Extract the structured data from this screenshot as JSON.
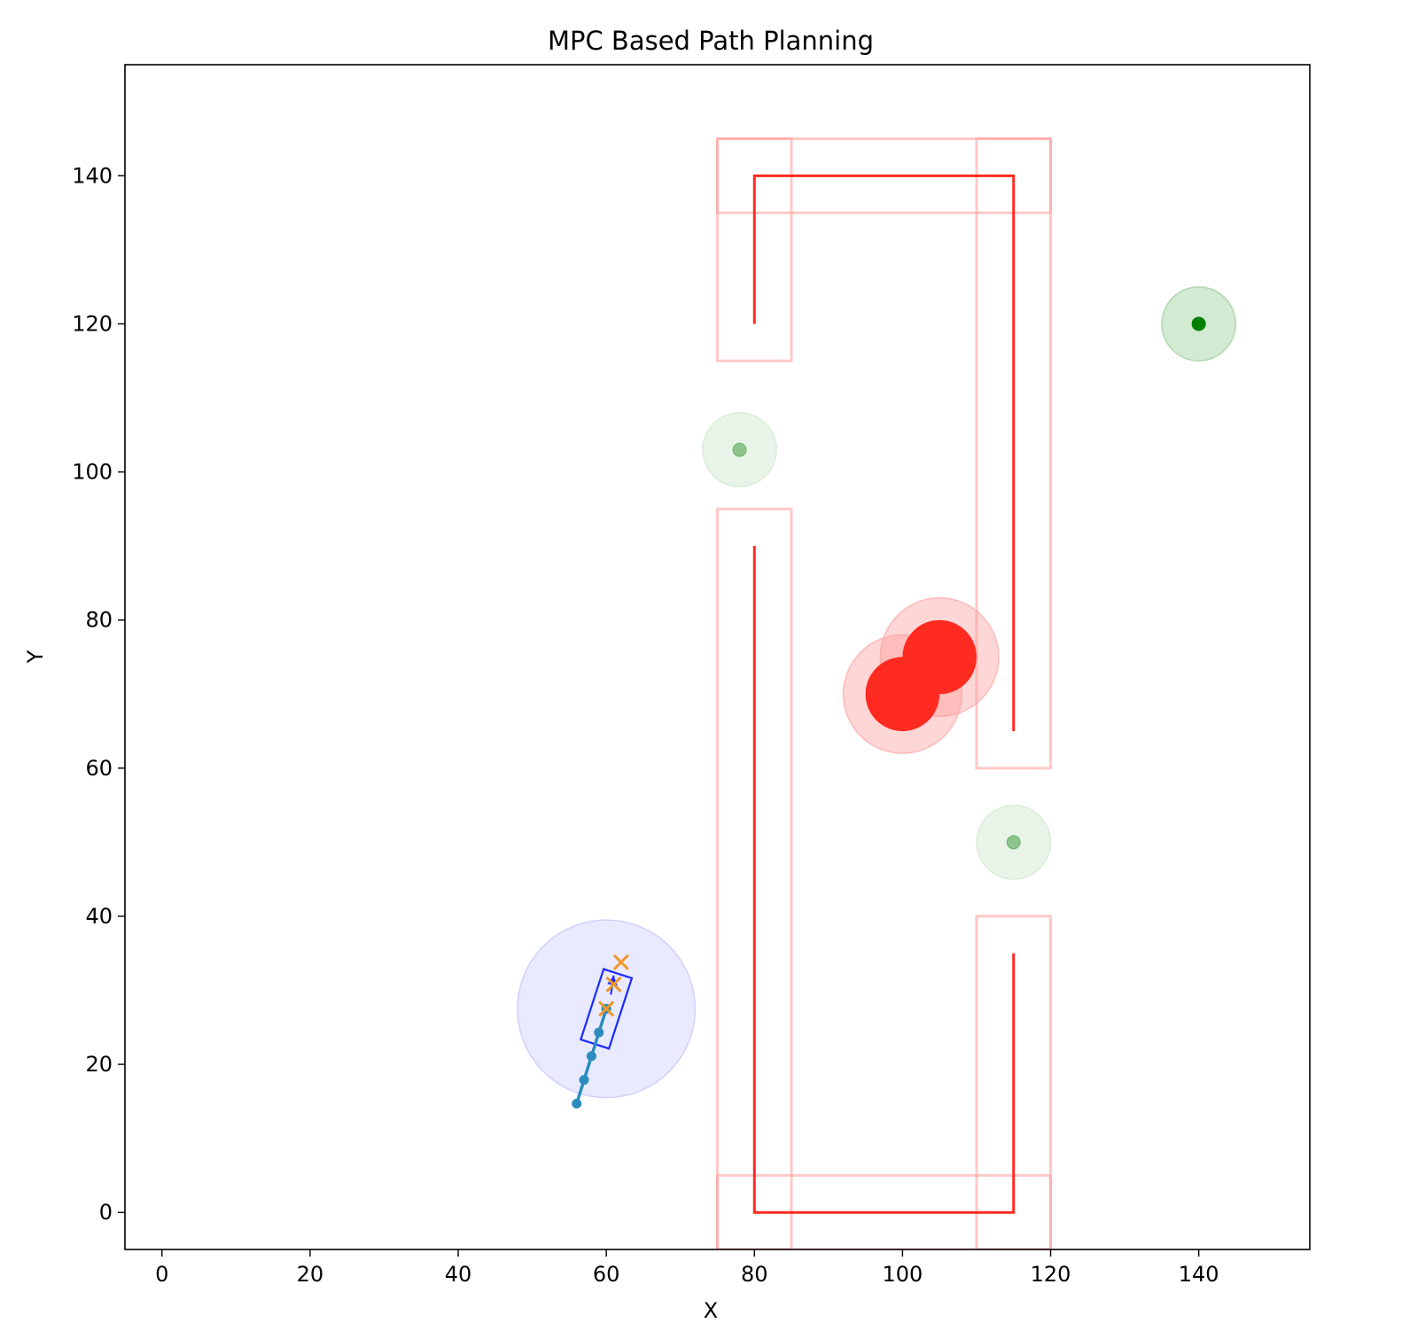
{
  "chart_data": {
    "type": "scatter",
    "title": "MPC Based Path Planning",
    "xlabel": "X",
    "ylabel": "Y",
    "xlim": [
      -5,
      155
    ],
    "ylim": [
      -5,
      155
    ],
    "xticks": [
      0,
      20,
      40,
      60,
      80,
      100,
      120,
      140
    ],
    "yticks": [
      0,
      20,
      40,
      60,
      80,
      100,
      120,
      140
    ],
    "grid": false,
    "colors": {
      "wall": "#ff2a20",
      "wall_zone": "#ff9a9a",
      "obstacle": "#ff2a20",
      "obstacle_halo": "#ff9999",
      "goal": "#008000",
      "goal_halo": "#7fbf7f",
      "robot": "#1a2bff",
      "robot_halo": "#c8c8ff",
      "trajectory": "#2b8cbe",
      "prediction": "#f0982a"
    },
    "walls": [
      {
        "x": [
          80,
          80,
          115,
          115
        ],
        "y": [
          120,
          140,
          140,
          65
        ]
      },
      {
        "x": [
          80,
          80,
          115,
          115
        ],
        "y": [
          90,
          0,
          0,
          35
        ]
      }
    ],
    "wall_zones": [
      {
        "x": [
          75,
          85
        ],
        "y": [
          115,
          145
        ]
      },
      {
        "x": [
          75,
          120
        ],
        "y": [
          135,
          145
        ]
      },
      {
        "x": [
          110,
          120
        ],
        "y": [
          60,
          145
        ]
      },
      {
        "x": [
          75,
          85
        ],
        "y": [
          -5,
          95
        ]
      },
      {
        "x": [
          75,
          120
        ],
        "y": [
          -5,
          5
        ]
      },
      {
        "x": [
          110,
          120
        ],
        "y": [
          -5,
          40
        ]
      }
    ],
    "obstacles": [
      {
        "x": 100,
        "y": 70,
        "r": 5,
        "halo_r": 8
      },
      {
        "x": 105,
        "y": 75,
        "r": 5,
        "halo_r": 8
      }
    ],
    "goals": [
      {
        "x": 140,
        "y": 120,
        "r": 0.9,
        "halo_r": 5,
        "alpha": 1.0
      },
      {
        "x": 78,
        "y": 103,
        "r": 0.9,
        "halo_r": 5,
        "alpha": 0.4
      },
      {
        "x": 115,
        "y": 50,
        "r": 0.9,
        "halo_r": 5,
        "alpha": 0.4
      }
    ],
    "robot": {
      "x": 60,
      "y": 27.5,
      "halo_r": 12,
      "heading_deg": 72,
      "length": 10,
      "width": 4,
      "arrow_tip": {
        "x": 61,
        "y": 32
      }
    },
    "trajectory": {
      "x": [
        56,
        57,
        58,
        59,
        60
      ],
      "y": [
        14.7,
        17.9,
        21.1,
        24.3,
        27.5
      ]
    },
    "predicted_points": {
      "x": [
        60,
        61,
        62
      ],
      "y": [
        27.5,
        30.8,
        33.8
      ]
    }
  }
}
